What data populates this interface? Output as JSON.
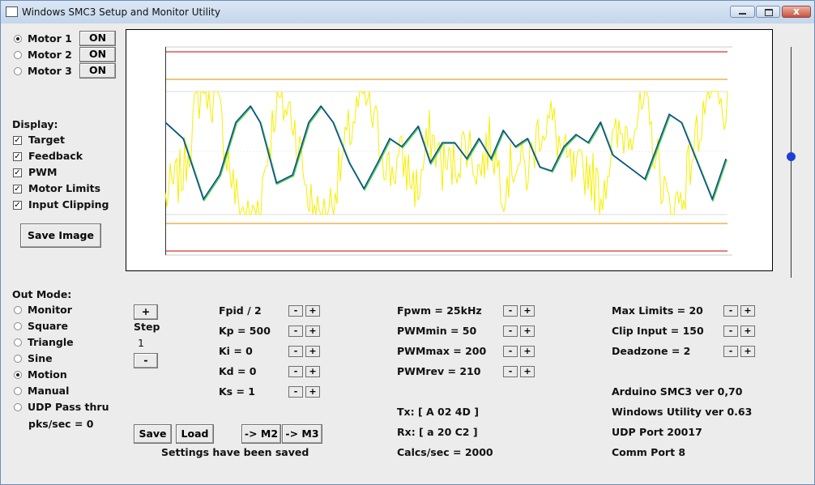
{
  "window": {
    "title": "Windows SMC3 Setup and Monitor Utility"
  },
  "motors": [
    {
      "label": "Motor 1",
      "button": "ON",
      "selected": true
    },
    {
      "label": "Motor 2",
      "button": "ON",
      "selected": false
    },
    {
      "label": "Motor 3",
      "button": "ON",
      "selected": false
    }
  ],
  "display": {
    "heading": "Display:",
    "options": [
      {
        "label": "Target",
        "checked": true
      },
      {
        "label": "Feedback",
        "checked": true
      },
      {
        "label": "PWM",
        "checked": true
      },
      {
        "label": "Motor Limits",
        "checked": true
      },
      {
        "label": "Input Clipping",
        "checked": true
      }
    ],
    "save_image": "Save Image"
  },
  "out_mode": {
    "heading": "Out Mode:",
    "options": [
      {
        "label": "Monitor",
        "selected": false
      },
      {
        "label": "Square",
        "selected": false
      },
      {
        "label": "Triangle",
        "selected": false
      },
      {
        "label": "Sine",
        "selected": false
      },
      {
        "label": "Motion",
        "selected": true
      },
      {
        "label": "Manual",
        "selected": false
      },
      {
        "label": "UDP Pass thru",
        "selected": false
      }
    ],
    "pks": "pks/sec = 0"
  },
  "step": {
    "plus": "+",
    "label": "Step",
    "value": "1",
    "minus": "-"
  },
  "params": [
    [
      {
        "label": "Fpid / 2",
        "minus": "-",
        "plus": "+"
      },
      {
        "label": "Kp = 500",
        "minus": "-",
        "plus": "+"
      },
      {
        "label": "Ki = 0",
        "minus": "-",
        "plus": "+"
      },
      {
        "label": "Kd = 0",
        "minus": "-",
        "plus": "+"
      },
      {
        "label": "Ks = 1",
        "minus": "-",
        "plus": "+"
      }
    ],
    [
      {
        "label": "Fpwm = 25kHz",
        "minus": "-",
        "plus": "+"
      },
      {
        "label": "PWMmin = 50",
        "minus": "-",
        "plus": "+"
      },
      {
        "label": "PWMmax = 200",
        "minus": "-",
        "plus": "+"
      },
      {
        "label": "PWMrev = 210",
        "minus": "-",
        "plus": "+"
      }
    ],
    [
      {
        "label": "Max Limits = 20",
        "minus": "-",
        "plus": "+"
      },
      {
        "label": "Clip Input = 150",
        "minus": "-",
        "plus": "+"
      },
      {
        "label": "Deadzone = 2",
        "minus": "-",
        "plus": "+"
      }
    ]
  ],
  "buttons": {
    "save": "Save",
    "load": "Load",
    "to_m2": "-> M2",
    "to_m3": "-> M3"
  },
  "status": "Settings have been saved",
  "comms": {
    "tx": "Tx: [ A 02 4D ]",
    "rx": "Rx: [ a 20 C2 ]",
    "calcs": "Calcs/sec = 2000"
  },
  "info": {
    "arduino": "Arduino SMC3 ver 0,70",
    "utility": "Windows Utility ver 0.63",
    "udp": "UDP Port 20017",
    "comm": "Comm Port 8"
  }
}
